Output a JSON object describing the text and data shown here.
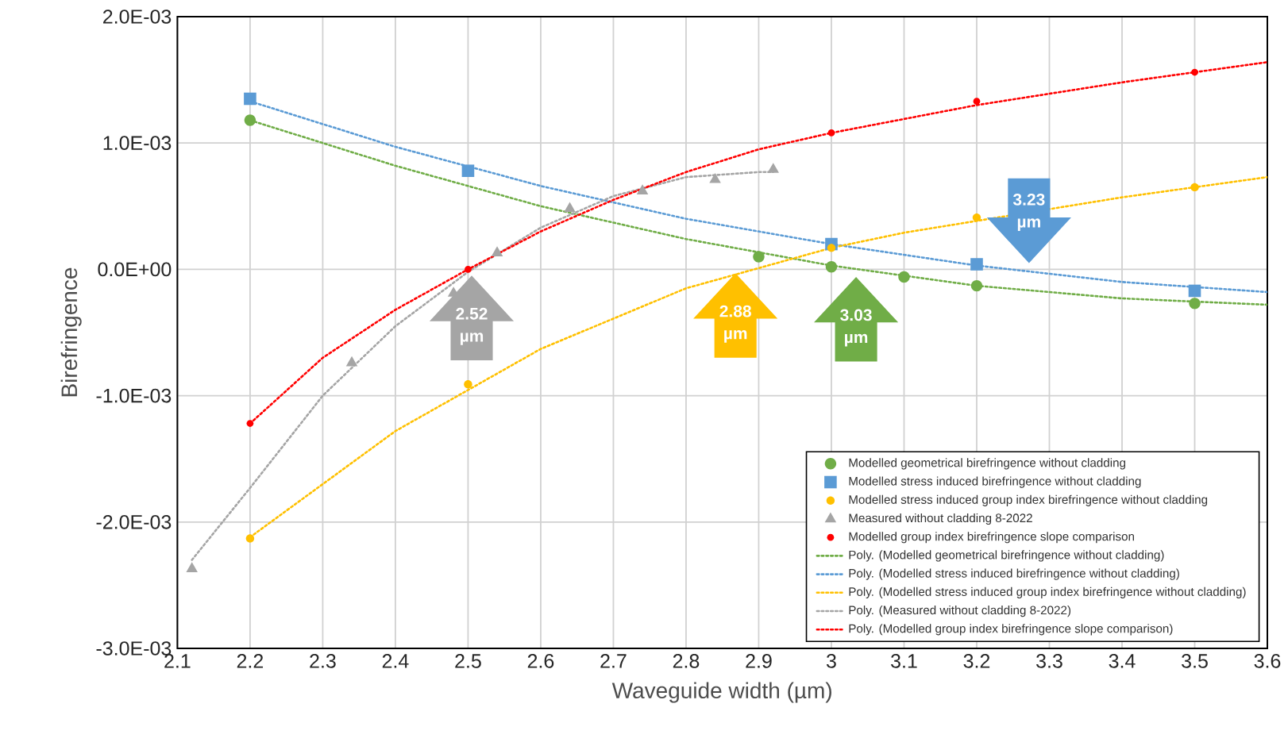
{
  "chart_data": {
    "type": "scatter",
    "xlabel": "Waveguide width (µm)",
    "ylabel": "Birefringence",
    "xlim": [
      2.1,
      3.6
    ],
    "xticks": [
      2.1,
      2.2,
      2.3,
      2.4,
      2.5,
      2.6,
      2.7,
      2.8,
      2.9,
      3,
      3.1,
      3.2,
      3.3,
      3.4,
      3.5,
      3.6
    ],
    "ylim": [
      -0.003,
      0.002
    ],
    "yticks": [
      {
        "value": -0.003,
        "label": "-3.0E-03"
      },
      {
        "value": -0.002,
        "label": "-2.0E-03"
      },
      {
        "value": -0.001,
        "label": "-1.0E-03"
      },
      {
        "value": 0,
        "label": "0.0E+00"
      },
      {
        "value": 0.001,
        "label": "1.0E-03"
      },
      {
        "value": 0.002,
        "label": "2.0E-03"
      }
    ],
    "grid": true,
    "legend": "bottom right",
    "series": [
      {
        "name": "Modelled geometrical birefringence without cladding",
        "marker": "circle",
        "color": "#70ad47",
        "x": [
          2.2,
          2.9,
          3.0,
          3.1,
          3.2,
          3.5
        ],
        "values": [
          0.00118,
          0.0001,
          2e-05,
          -6e-05,
          -0.00013,
          -0.00027
        ]
      },
      {
        "name": "Modelled stress induced birefringence without cladding",
        "marker": "square",
        "color": "#5b9bd5",
        "x": [
          2.2,
          2.5,
          3.0,
          3.2,
          3.5
        ],
        "values": [
          0.00135,
          0.00078,
          0.0002,
          4e-05,
          -0.00017
        ]
      },
      {
        "name": "Modelled stress induced group index birefringence without cladding",
        "marker": "circle",
        "color": "#ffc000",
        "x": [
          2.2,
          2.5,
          3.0,
          3.2,
          3.5
        ],
        "values": [
          -0.00213,
          -0.00091,
          0.00017,
          0.00041,
          0.00065
        ]
      },
      {
        "name": "Measured without cladding 8-2022",
        "marker": "triangle",
        "color": "#a5a5a5",
        "x": [
          2.12,
          2.34,
          2.48,
          2.54,
          2.64,
          2.74,
          2.84,
          2.92
        ],
        "values": [
          -0.00237,
          -0.00074,
          -0.00019,
          0.00013,
          0.00048,
          0.00062,
          0.00071,
          0.00079
        ]
      },
      {
        "name": "Modelled group index birefringence slope comparison",
        "marker": "circle",
        "color": "#ff0000",
        "x": [
          2.2,
          2.5,
          3.0,
          3.2,
          3.5
        ],
        "values": [
          -0.00122,
          0.0,
          0.00108,
          0.00133,
          0.00156
        ]
      },
      {
        "name": "Poly. (Modelled geometrical birefringence without cladding)",
        "type": "line",
        "line_style": "dotted",
        "marker": "none",
        "color": "#70ad47",
        "x": [
          2.2,
          2.4,
          2.6,
          2.8,
          3.0,
          3.2,
          3.4,
          3.6
        ],
        "values": [
          0.00118,
          0.00082,
          0.0005,
          0.00024,
          3e-05,
          -0.00013,
          -0.00023,
          -0.00028
        ]
      },
      {
        "name": "Poly. (Modelled stress induced birefringence without cladding)",
        "type": "line",
        "line_style": "dotted",
        "marker": "none",
        "color": "#5b9bd5",
        "x": [
          2.2,
          2.4,
          2.6,
          2.8,
          3.0,
          3.2,
          3.4,
          3.6
        ],
        "values": [
          0.00133,
          0.00097,
          0.00066,
          0.0004,
          0.0002,
          3e-05,
          -0.0001,
          -0.00018
        ]
      },
      {
        "name": "Poly. (Modelled stress induced group index birefringence without cladding)",
        "type": "line",
        "line_style": "dotted",
        "marker": "none",
        "color": "#ffc000",
        "x": [
          2.2,
          2.4,
          2.6,
          2.8,
          3.0,
          3.1,
          3.4,
          3.6
        ],
        "values": [
          -0.00212,
          -0.00128,
          -0.00063,
          -0.00015,
          0.00017,
          0.00029,
          0.00057,
          0.00073
        ]
      },
      {
        "name": "Poly. (Measured without cladding 8-2022)",
        "type": "line",
        "line_style": "dotted",
        "marker": "none",
        "color": "#a5a5a5",
        "x": [
          2.12,
          2.2,
          2.3,
          2.4,
          2.5,
          2.6,
          2.7,
          2.8,
          2.9,
          2.92
        ],
        "values": [
          -0.0023,
          -0.00173,
          -0.001,
          -0.00045,
          -2e-05,
          0.00033,
          0.00058,
          0.00073,
          0.00077,
          0.00077
        ]
      },
      {
        "name": "Poly. (Modelled group index birefringence slope comparison)",
        "type": "line",
        "line_style": "dotted",
        "marker": "none",
        "color": "#ff0000",
        "x": [
          2.2,
          2.3,
          2.4,
          2.5,
          2.6,
          2.7,
          2.8,
          2.9,
          3.0,
          3.2,
          3.4,
          3.6
        ],
        "values": [
          -0.00122,
          -0.0007,
          -0.00032,
          0.0,
          0.0003,
          0.00055,
          0.00077,
          0.00095,
          0.00108,
          0.0013,
          0.00148,
          0.00164
        ]
      }
    ],
    "annotations": [
      "2.52 µm",
      "2.88 µm",
      "3.03 µm",
      "3.23 µm"
    ]
  }
}
